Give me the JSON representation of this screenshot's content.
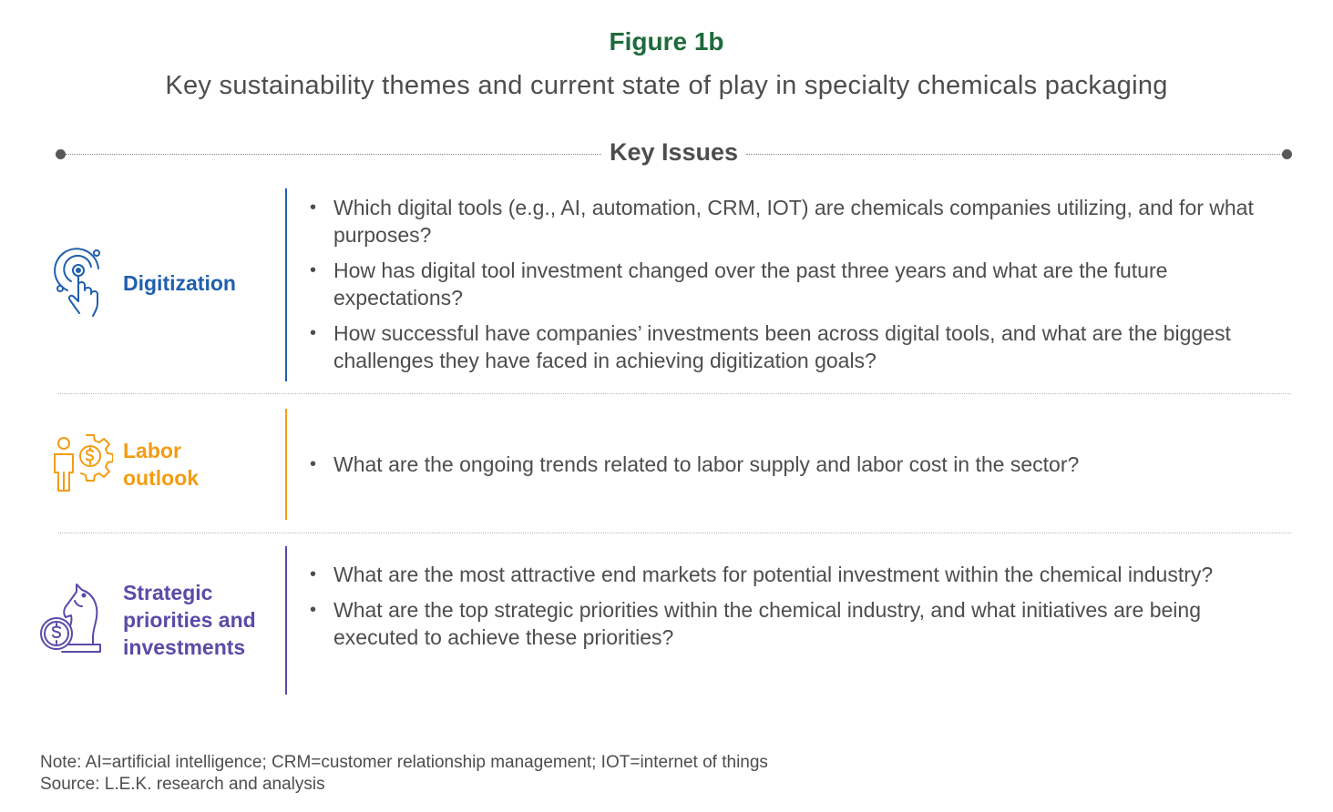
{
  "figure_label": "Figure 1b",
  "figure_title": "Key sustainability themes and current state of play in specialty chemicals packaging",
  "key_issues_label": "Key Issues",
  "colors": {
    "digitization": "#1f5fae",
    "labor": "#f39c12",
    "strategic": "#5b4aa8",
    "figure_label": "#1e6b3b"
  },
  "sections": [
    {
      "icon": "touch-target-hand-icon",
      "title_lines": [
        "Digitization"
      ],
      "bullets": [
        "Which digital tools (e.g., AI, automation, CRM, IOT) are chemicals companies utilizing, and for what purposes?",
        "How has digital tool investment changed over the past three years and what are the future expectations?",
        "How successful have companies’ investments been across digital tools, and what are the biggest challenges they have faced in achieving digitization goals?"
      ]
    },
    {
      "icon": "worker-dollar-gear-icon",
      "title_lines": [
        "Labor",
        "outlook"
      ],
      "bullets": [
        "What are the ongoing trends related to labor supply and labor cost in the sector?"
      ]
    },
    {
      "icon": "chess-knight-dollar-icon",
      "title_lines": [
        "Strategic",
        "priorities and",
        "investments"
      ],
      "bullets": [
        "What are the most attractive end markets for potential investment within the chemical industry?",
        "What are the top strategic priorities within the chemical industry, and what initiatives are being executed to achieve these priorities?"
      ]
    }
  ],
  "note": "Note: AI=artificial intelligence; CRM=customer relationship management; IOT=internet of things",
  "source": "Source: L.E.K. research and analysis"
}
